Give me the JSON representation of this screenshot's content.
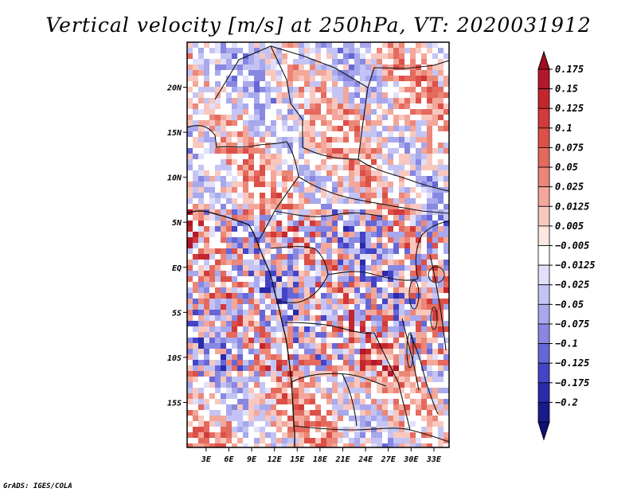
{
  "chart_data": {
    "type": "heatmap",
    "title": "Vertical velocity [m/s] at 250hPa, VT: 2020031912",
    "x_tick_labels": [
      "3E",
      "6E",
      "9E",
      "12E",
      "15E",
      "18E",
      "21E",
      "24E",
      "27E",
      "30E",
      "33E"
    ],
    "x_tick_values": [
      3,
      6,
      9,
      12,
      15,
      18,
      21,
      24,
      27,
      30,
      33
    ],
    "y_tick_labels": [
      "20N",
      "15N",
      "10N",
      "5N",
      "EQ",
      "5S",
      "10S",
      "15S"
    ],
    "y_tick_values": [
      20,
      15,
      10,
      5,
      0,
      -5,
      -10,
      -15
    ],
    "xlim": [
      0.5,
      35
    ],
    "ylim": [
      -20,
      25
    ],
    "colorbar": {
      "labels": [
        "0.175",
        "0.15",
        "0.125",
        "0.1",
        "0.075",
        "0.05",
        "0.025",
        "0.0125",
        "0.005",
        "−0.005",
        "−0.0125",
        "−0.025",
        "−0.05",
        "−0.075",
        "−0.1",
        "−0.125",
        "−0.175",
        "−0.2"
      ],
      "colors": [
        "#b2182b",
        "#c4262e",
        "#d23a3a",
        "#dc5048",
        "#e56a5e",
        "#ec8778",
        "#f3a79a",
        "#f8c8bf",
        "#fce6e0",
        "#ffffff",
        "#e0e0fb",
        "#c4c4f4",
        "#a8a8ec",
        "#8888e2",
        "#6666d6",
        "#4444c6",
        "#2a2aaa",
        "#1a1a8c"
      ],
      "top_arrow_color": "#a01020",
      "bottom_arrow_color": "#10107a"
    }
  },
  "footer": "GrADS: IGES/COLA"
}
